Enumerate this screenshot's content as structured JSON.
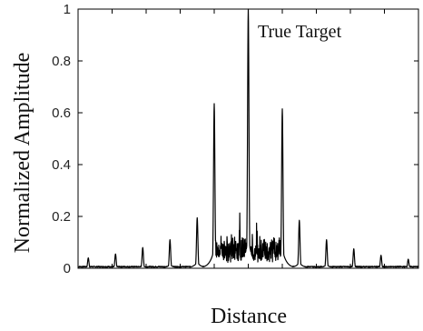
{
  "chart_data": {
    "type": "line",
    "title": "",
    "xlabel": "Distance",
    "ylabel": "Normalized Amplitude",
    "ylim": [
      0,
      1
    ],
    "yticks": [
      0,
      0.2,
      0.4,
      0.6,
      0.8,
      1
    ],
    "ytick_labels": [
      "0",
      "0.2",
      "0.4",
      "0.6",
      "0.8",
      "1"
    ],
    "xlim": [
      0,
      1
    ],
    "x_tick_labels_shown": false,
    "grid": false,
    "legend": "none",
    "line_color": "#000000",
    "annotations": [
      {
        "text": "True Target",
        "points_to_x": 0.5,
        "points_to_y": 1.0
      }
    ],
    "series": [
      {
        "description_points": [
          {
            "x": 0.03,
            "y": 0.04
          },
          {
            "x": 0.11,
            "y": 0.055
          },
          {
            "x": 0.19,
            "y": 0.08
          },
          {
            "x": 0.27,
            "y": 0.11
          },
          {
            "x": 0.35,
            "y": 0.195
          },
          {
            "x": 0.4,
            "y": 0.635
          },
          {
            "x": 0.5,
            "y": 1.0
          },
          {
            "x": 0.6,
            "y": 0.615
          },
          {
            "x": 0.65,
            "y": 0.185
          },
          {
            "x": 0.73,
            "y": 0.11
          },
          {
            "x": 0.81,
            "y": 0.075
          },
          {
            "x": 0.89,
            "y": 0.05
          },
          {
            "x": 0.97,
            "y": 0.035
          }
        ],
        "inner_clutter": [
          {
            "x": 0.42,
            "y": 0.16
          },
          {
            "x": 0.455,
            "y": 0.14
          },
          {
            "x": 0.475,
            "y": 0.22
          },
          {
            "x": 0.525,
            "y": 0.22
          },
          {
            "x": 0.545,
            "y": 0.13
          },
          {
            "x": 0.575,
            "y": 0.15
          }
        ]
      }
    ]
  }
}
